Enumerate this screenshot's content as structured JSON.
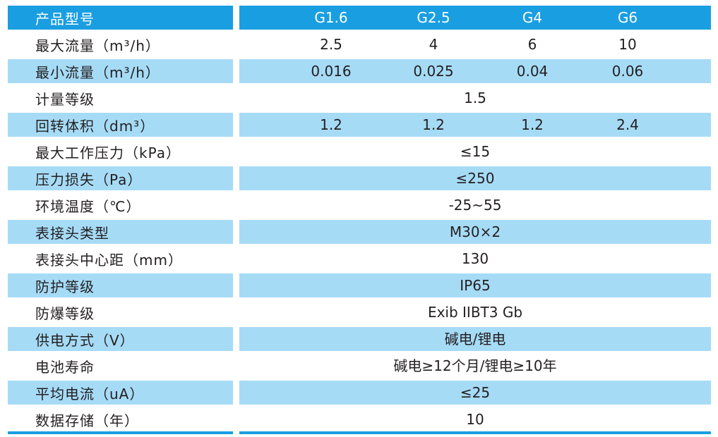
{
  "table": {
    "header": {
      "label": "产品型号",
      "models": [
        "G1.6",
        "G2.5",
        "G4",
        "G6"
      ]
    },
    "rows": [
      {
        "label": "最大流量（m³/h）",
        "values": [
          "2.5",
          "4",
          "6",
          "10"
        ]
      },
      {
        "label": "最小流量（m³/h）",
        "values": [
          "0.016",
          "0.025",
          "0.04",
          "0.06"
        ]
      },
      {
        "label": "计量等级",
        "value": "1.5"
      },
      {
        "label": "回转体积（dm³）",
        "values": [
          "1.2",
          "1.2",
          "1.2",
          "2.4"
        ]
      },
      {
        "label": "最大工作压力（kPa）",
        "value": "≤15"
      },
      {
        "label": "压力损失（Pa）",
        "value": "≤250"
      },
      {
        "label": "环境温度（℃）",
        "value": "-25~55"
      },
      {
        "label": "表接头类型",
        "value": "M30×2"
      },
      {
        "label": "表接头中心距（mm）",
        "value": "130"
      },
      {
        "label": "防护等级",
        "value": "IP65"
      },
      {
        "label": "防爆等级",
        "value": "Exib IIBT3 Gb"
      },
      {
        "label": "供电方式（V）",
        "value": "碱电/锂电"
      },
      {
        "label": "电池寿命",
        "value": "碱电≥12个月/锂电≥10年"
      },
      {
        "label": "平均电流（uA）",
        "value": "≤25"
      },
      {
        "label": "数据存储（年）",
        "value": "10"
      }
    ]
  },
  "colors": {
    "header": "#1a9ee2",
    "band": "#a6dbf6",
    "text": "#231f20",
    "header_text": "#ffffff"
  }
}
